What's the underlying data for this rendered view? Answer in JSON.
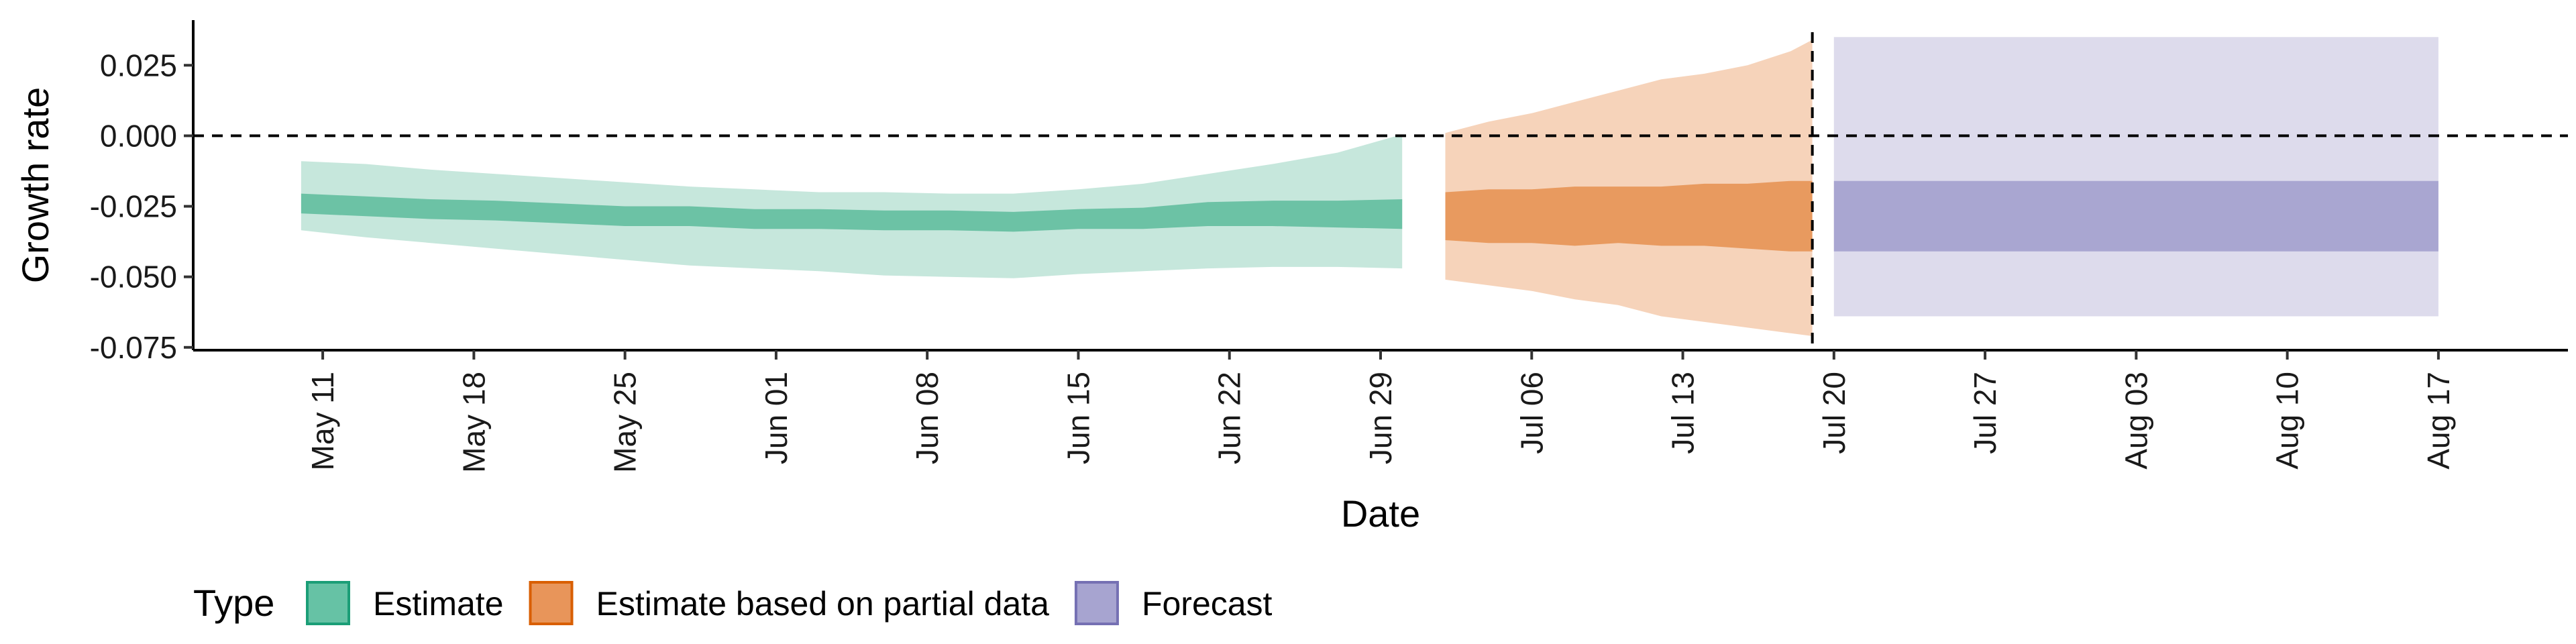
{
  "chart_data": {
    "type": "area",
    "xlabel": "Date",
    "ylabel": "Growth rate",
    "x_tick_labels": [
      "May 11",
      "May 18",
      "May 25",
      "Jun 01",
      "Jun 08",
      "Jun 15",
      "Jun 22",
      "Jun 29",
      "Jul 06",
      "Jul 13",
      "Jul 20",
      "Jul 27",
      "Aug 03",
      "Aug 10",
      "Aug 17"
    ],
    "x_ticks": [
      "2020-05-11",
      "2020-05-18",
      "2020-05-25",
      "2020-06-01",
      "2020-06-08",
      "2020-06-15",
      "2020-06-22",
      "2020-06-29",
      "2020-07-06",
      "2020-07-13",
      "2020-07-20",
      "2020-07-27",
      "2020-08-03",
      "2020-08-10",
      "2020-08-17"
    ],
    "xlim": [
      "2020-05-05",
      "2020-08-23"
    ],
    "y_ticks": [
      0.025,
      0.0,
      -0.025,
      -0.05,
      -0.075
    ],
    "y_tick_labels": [
      "0.025",
      "0.000",
      "-0.025",
      "-0.050",
      "-0.075"
    ],
    "ylim": [
      -0.076,
      0.041
    ],
    "reference_lines": {
      "horizontal_y": 0.0,
      "vertical_x": "2020-07-19"
    },
    "legend": {
      "title": "Type",
      "position": "bottom",
      "entries": [
        {
          "label": "Estimate",
          "fill": "#66c2a5",
          "stroke": "#1b9e77"
        },
        {
          "label": "Estimate based on partial data",
          "fill": "#e8955a",
          "stroke": "#d95f02"
        },
        {
          "label": "Forecast",
          "fill": "#a7a4d0",
          "stroke": "#7570b3"
        }
      ]
    },
    "series": [
      {
        "name": "Estimate",
        "colors": {
          "inner": "#6cc2a5",
          "outer": "#c6e7dc"
        },
        "x": [
          "2020-05-10",
          "2020-05-13",
          "2020-05-16",
          "2020-05-19",
          "2020-05-22",
          "2020-05-25",
          "2020-05-28",
          "2020-05-31",
          "2020-06-03",
          "2020-06-06",
          "2020-06-09",
          "2020-06-12",
          "2020-06-15",
          "2020-06-18",
          "2020-06-21",
          "2020-06-24",
          "2020-06-27",
          "2020-06-30"
        ],
        "median_low": [
          -0.0275,
          -0.0285,
          -0.0295,
          -0.03,
          -0.031,
          -0.032,
          -0.032,
          -0.033,
          -0.033,
          -0.0335,
          -0.0335,
          -0.034,
          -0.033,
          -0.033,
          -0.032,
          -0.032,
          -0.0325,
          -0.033
        ],
        "median_high": [
          -0.0205,
          -0.0215,
          -0.0225,
          -0.023,
          -0.024,
          -0.025,
          -0.025,
          -0.026,
          -0.026,
          -0.0265,
          -0.0265,
          -0.027,
          -0.026,
          -0.0255,
          -0.0235,
          -0.023,
          -0.023,
          -0.0225
        ],
        "ci_low": [
          -0.0335,
          -0.036,
          -0.038,
          -0.04,
          -0.042,
          -0.044,
          -0.046,
          -0.047,
          -0.048,
          -0.0495,
          -0.05,
          -0.0505,
          -0.049,
          -0.048,
          -0.047,
          -0.0465,
          -0.0465,
          -0.047
        ],
        "ci_high": [
          -0.009,
          -0.01,
          -0.012,
          -0.0135,
          -0.015,
          -0.0165,
          -0.018,
          -0.019,
          -0.02,
          -0.02,
          -0.0205,
          -0.0205,
          -0.019,
          -0.017,
          -0.0135,
          -0.01,
          -0.006,
          0.0005
        ]
      },
      {
        "name": "Estimate based on partial data",
        "colors": {
          "inner": "#e89a5f",
          "outer": "#f6d3ba"
        },
        "x": [
          "2020-07-02",
          "2020-07-04",
          "2020-07-06",
          "2020-07-08",
          "2020-07-10",
          "2020-07-12",
          "2020-07-14",
          "2020-07-16",
          "2020-07-18",
          "2020-07-19"
        ],
        "median_low": [
          -0.037,
          -0.038,
          -0.038,
          -0.039,
          -0.038,
          -0.039,
          -0.039,
          -0.04,
          -0.041,
          -0.041
        ],
        "median_high": [
          -0.02,
          -0.019,
          -0.019,
          -0.018,
          -0.018,
          -0.018,
          -0.017,
          -0.017,
          -0.016,
          -0.016
        ],
        "ci_low": [
          -0.051,
          -0.053,
          -0.055,
          -0.058,
          -0.06,
          -0.064,
          -0.066,
          -0.068,
          -0.07,
          -0.071
        ],
        "ci_high": [
          0.001,
          0.005,
          0.008,
          0.012,
          0.016,
          0.02,
          0.022,
          0.025,
          0.03,
          0.034
        ]
      },
      {
        "name": "Forecast",
        "colors": {
          "inner": "#a9a6d1",
          "outer": "#dddbec"
        },
        "x": [
          "2020-07-20",
          "2020-08-17"
        ],
        "median_low": [
          -0.041,
          -0.041
        ],
        "median_high": [
          -0.016,
          -0.016
        ],
        "ci_low": [
          -0.064,
          -0.064
        ],
        "ci_high": [
          0.035,
          0.035
        ]
      }
    ]
  }
}
